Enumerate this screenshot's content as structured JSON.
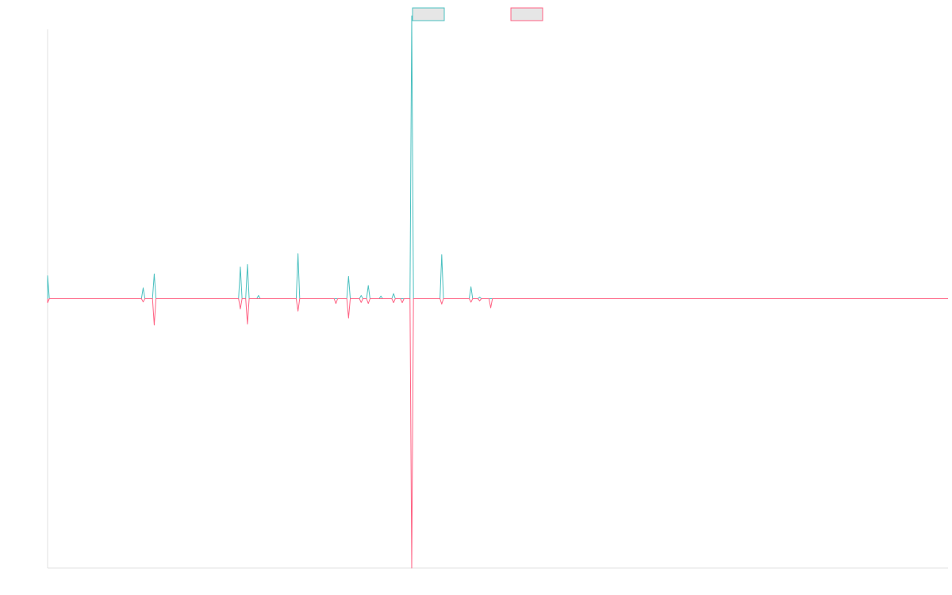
{
  "chart_data": {
    "type": "line",
    "title": "",
    "xlabel": "",
    "ylabel": "",
    "x_range": [
      0,
      1140
    ],
    "ylim": [
      -100,
      100
    ],
    "baseline": 0,
    "grid": false,
    "legend_position": "top-center",
    "series": [
      {
        "color": "#4bc0c0",
        "fill": "#e6e6e6",
        "peaks": [
          {
            "x": 0,
            "y": 8.5
          },
          {
            "x": 121,
            "y": 4.0
          },
          {
            "x": 135,
            "y": 9.2
          },
          {
            "x": 244,
            "y": 11.8
          },
          {
            "x": 253,
            "y": 12.7
          },
          {
            "x": 267,
            "y": 1.2
          },
          {
            "x": 317,
            "y": 16.7
          },
          {
            "x": 381,
            "y": 8.3
          },
          {
            "x": 397,
            "y": 1.2
          },
          {
            "x": 406,
            "y": 4.9
          },
          {
            "x": 422,
            "y": 1.0
          },
          {
            "x": 438,
            "y": 1.9
          },
          {
            "x": 461,
            "y": 105.0
          },
          {
            "x": 499,
            "y": 16.4
          },
          {
            "x": 536,
            "y": 4.4
          },
          {
            "x": 547,
            "y": 0.6
          }
        ]
      },
      {
        "color": "#ff6384",
        "fill": "#e6e6e6",
        "peaks": [
          {
            "x": 0,
            "y": -1.5
          },
          {
            "x": 121,
            "y": -1.2
          },
          {
            "x": 135,
            "y": -9.8
          },
          {
            "x": 244,
            "y": -3.8
          },
          {
            "x": 253,
            "y": -9.4
          },
          {
            "x": 317,
            "y": -4.6
          },
          {
            "x": 365,
            "y": -1.8
          },
          {
            "x": 381,
            "y": -7.2
          },
          {
            "x": 397,
            "y": -1.4
          },
          {
            "x": 406,
            "y": -1.8
          },
          {
            "x": 438,
            "y": -1.5
          },
          {
            "x": 449,
            "y": -1.5
          },
          {
            "x": 461,
            "y": -100.0
          },
          {
            "x": 499,
            "y": -2.0
          },
          {
            "x": 536,
            "y": -1.3
          },
          {
            "x": 547,
            "y": -0.8
          },
          {
            "x": 561,
            "y": -3.4
          }
        ]
      }
    ]
  }
}
